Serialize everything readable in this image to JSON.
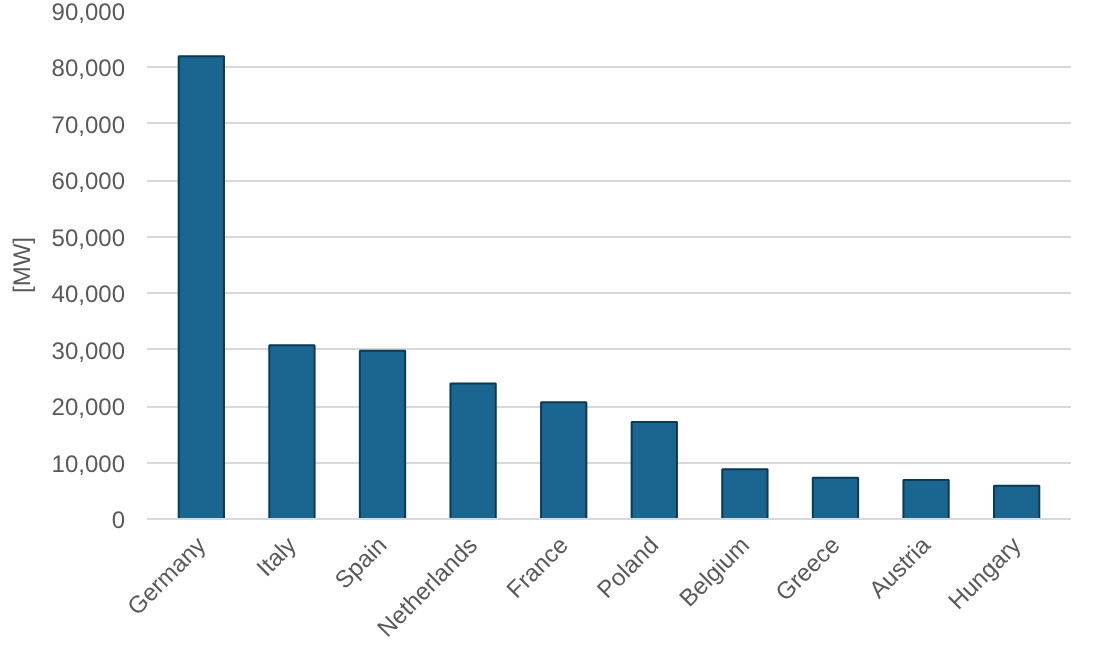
{
  "chart_data": {
    "type": "bar",
    "ylabel": "[MW]",
    "categories": [
      "Germany",
      "Italy",
      "Spain",
      "Netherlands",
      "France",
      "Poland",
      "Belgium",
      "Greece",
      "Austria",
      "Hungary"
    ],
    "values": [
      82000,
      30800,
      29800,
      24000,
      20700,
      17200,
      8800,
      7300,
      6900,
      5900
    ],
    "color": "#1a6690",
    "ylim": [
      0,
      90000
    ],
    "yticks": [
      {
        "value": 0,
        "label": "0"
      },
      {
        "value": 10000,
        "label": "10,000"
      },
      {
        "value": 20000,
        "label": "20,000"
      },
      {
        "value": 30000,
        "label": "30,000"
      },
      {
        "value": 40000,
        "label": "40,000"
      },
      {
        "value": 50000,
        "label": "50,000"
      },
      {
        "value": 60000,
        "label": "60,000"
      },
      {
        "value": 70000,
        "label": "70,000"
      },
      {
        "value": 80000,
        "label": "80,000"
      },
      {
        "value": 90000,
        "label": "90,000"
      }
    ],
    "grid": "y"
  }
}
